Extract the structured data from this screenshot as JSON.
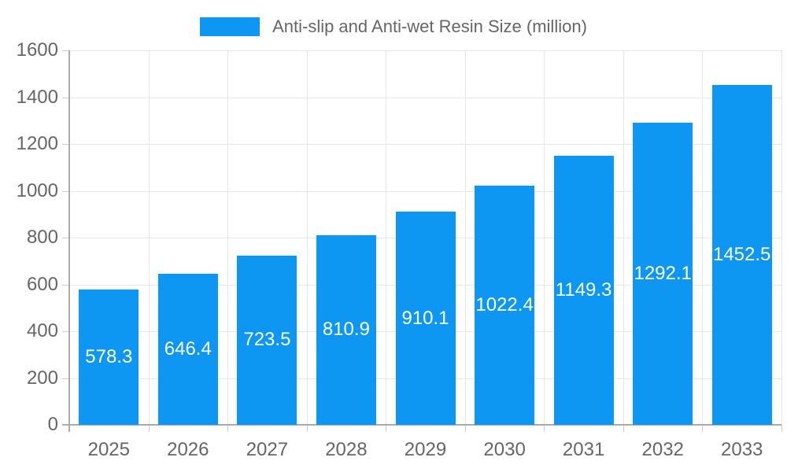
{
  "legend": {
    "label": "Anti-slip and Anti-wet Resin Size (million)"
  },
  "chart_data": {
    "type": "bar",
    "title": "Anti-slip and Anti-wet Resin Size (million)",
    "categories": [
      "2025",
      "2026",
      "2027",
      "2028",
      "2029",
      "2030",
      "2031",
      "2032",
      "2033"
    ],
    "values": [
      578.3,
      646.4,
      723.5,
      810.9,
      910.1,
      1022.4,
      1149.3,
      1292.1,
      1452.5
    ],
    "value_labels": [
      "578.3",
      "646.4",
      "723.5",
      "810.9",
      "910.1",
      "1022.4",
      "1149.3",
      "1292.1",
      "1452.5"
    ],
    "xlabel": "",
    "ylabel": "",
    "ylim": [
      0,
      1600
    ],
    "ytick_step": 200,
    "ytick_labels": [
      "0",
      "200",
      "400",
      "600",
      "800",
      "1000",
      "1200",
      "1400",
      "1600"
    ],
    "grid": true,
    "legend_position": "top",
    "value_label_position": "center-of-bar",
    "colors": {
      "bar": "#0d96f2",
      "value_label": "#ffffff",
      "axis_text": "#666666",
      "grid_line": "#e6e6e6",
      "axis_line": "#ababab",
      "tick_mark": "#cccccc",
      "background": "#ffffff"
    }
  }
}
